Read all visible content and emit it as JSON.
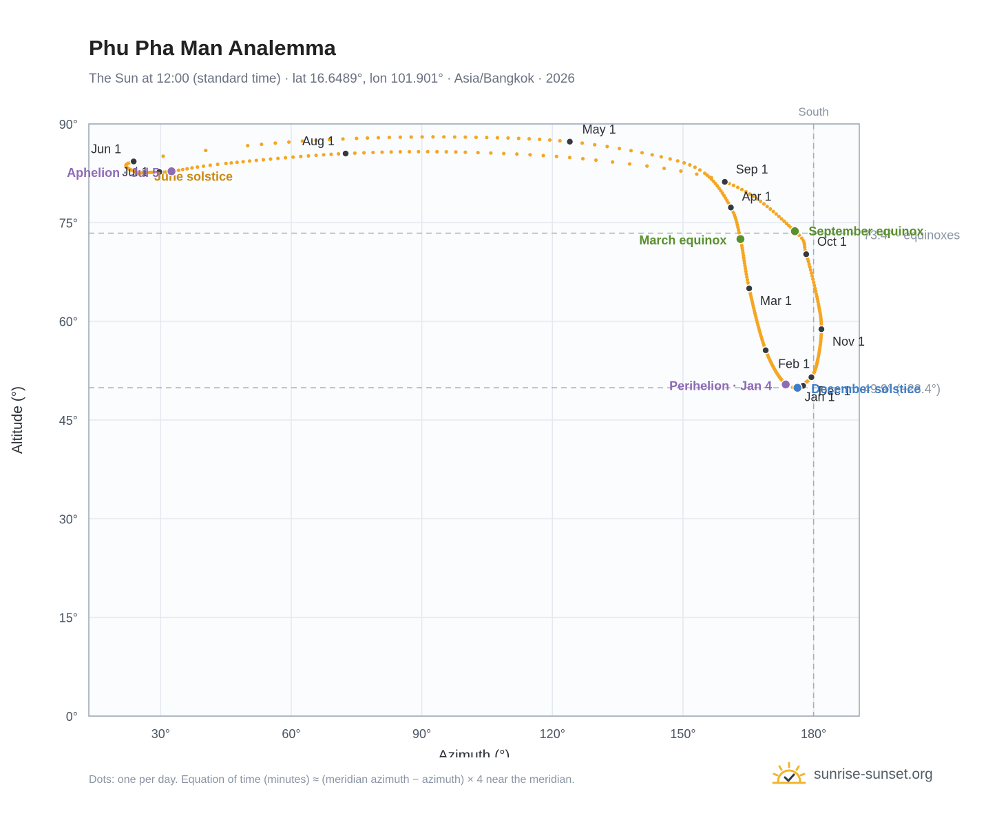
{
  "chart_data": {
    "type": "scatter",
    "title": "Phu Pha Man Analemma",
    "subtitle": "The Sun at 12:00 (standard time) · lat 16.6489°, lon 101.901° · Asia/Bangkok · 2026",
    "xlabel": "Azimuth (°)",
    "ylabel": "Altitude (°)",
    "xlim": [
      13.5,
      190.5
    ],
    "ylim": [
      0,
      90
    ],
    "xticks": [
      30,
      60,
      90,
      120,
      150,
      180
    ],
    "yticks": [
      0,
      15,
      30,
      45,
      60,
      75,
      90
    ],
    "xtick_labels": [
      "30°",
      "60°",
      "90°",
      "120°",
      "150°",
      "180°"
    ],
    "ytick_labels": [
      "0°",
      "15°",
      "30°",
      "45°",
      "60°",
      "75°",
      "90°"
    ],
    "grid": true,
    "colors": {
      "dots": "#f5a623",
      "month": "#343a40",
      "equinox": "#5a8f2e",
      "solstice_june": "#c98a12",
      "solstice_dec": "#3f7ec8",
      "apsis": "#8e6bb5",
      "ref": "#a3adb8",
      "plot_bg": "#fafcfe"
    },
    "reference_lines": {
      "south": {
        "azimuth": 180,
        "label": "South"
      },
      "equinox_altitude": {
        "altitude": 73.4,
        "label": "73.4° · equinoxes"
      },
      "december_altitude": {
        "altitude": 49.9,
        "label": "49.9° (−23.4°)"
      }
    },
    "month_markers": [
      {
        "label": "Jan 1",
        "az": 177.6,
        "alt": 50.2
      },
      {
        "label": "Feb 1",
        "az": 169.0,
        "alt": 55.6
      },
      {
        "label": "Mar 1",
        "az": 165.2,
        "alt": 65.0
      },
      {
        "label": "Apr 1",
        "az": 161.0,
        "alt": 77.3
      },
      {
        "label": "May 1",
        "az": 124.0,
        "alt": 87.3
      },
      {
        "label": "Jun 1",
        "az": 23.8,
        "alt": 84.3
      },
      {
        "label": "Jul 1",
        "az": 29.7,
        "alt": 82.7
      },
      {
        "label": "Aug 1",
        "az": 72.5,
        "alt": 85.5
      },
      {
        "label": "Sep 1",
        "az": 159.6,
        "alt": 81.2
      },
      {
        "label": "Oct 1",
        "az": 178.3,
        "alt": 70.2
      },
      {
        "label": "Nov 1",
        "az": 181.8,
        "alt": 58.8
      },
      {
        "label": "Dec 1",
        "az": 179.5,
        "alt": 51.5
      }
    ],
    "events": [
      {
        "label": "March equinox",
        "az": 163.2,
        "alt": 72.5,
        "kind": "equinox"
      },
      {
        "label": "September equinox",
        "az": 175.7,
        "alt": 73.7,
        "kind": "equinox"
      },
      {
        "label": "June solstice",
        "az": 26.0,
        "alt": 82.6,
        "kind": "solstice_june"
      },
      {
        "label": "December solstice",
        "az": 176.3,
        "alt": 49.9,
        "kind": "solstice_dec"
      },
      {
        "label": "Aphelion · Jul 5",
        "az": 32.5,
        "alt": 82.8,
        "kind": "apsis"
      },
      {
        "label": "Perihelion · Jan 4",
        "az": 173.6,
        "alt": 50.4,
        "kind": "apsis"
      }
    ],
    "path_anchors": [
      {
        "day": 0,
        "az": 177.6,
        "alt": 50.2
      },
      {
        "day": 3,
        "az": 173.6,
        "alt": 50.4
      },
      {
        "day": 31,
        "az": 169.0,
        "alt": 55.6
      },
      {
        "day": 59,
        "az": 165.2,
        "alt": 65.0
      },
      {
        "day": 78,
        "az": 163.2,
        "alt": 72.5
      },
      {
        "day": 90,
        "az": 161.0,
        "alt": 77.3
      },
      {
        "day": 105,
        "az": 155.0,
        "alt": 82.5
      },
      {
        "day": 112,
        "az": 145.0,
        "alt": 85.0
      },
      {
        "day": 120,
        "az": 124.0,
        "alt": 87.3
      },
      {
        "day": 130,
        "az": 100.0,
        "alt": 88.0
      },
      {
        "day": 140,
        "az": 75.0,
        "alt": 87.8
      },
      {
        "day": 148,
        "az": 50.0,
        "alt": 86.7
      },
      {
        "day": 151,
        "az": 23.8,
        "alt": 84.3
      },
      {
        "day": 165,
        "az": 24.5,
        "alt": 82.6
      },
      {
        "day": 172,
        "az": 26.0,
        "alt": 82.6
      },
      {
        "day": 181,
        "az": 29.7,
        "alt": 82.7
      },
      {
        "day": 185,
        "az": 32.5,
        "alt": 82.8
      },
      {
        "day": 195,
        "az": 45.0,
        "alt": 84.0
      },
      {
        "day": 212,
        "az": 72.5,
        "alt": 85.5
      },
      {
        "day": 225,
        "az": 100.0,
        "alt": 85.7
      },
      {
        "day": 235,
        "az": 130.0,
        "alt": 84.5
      },
      {
        "day": 243,
        "az": 159.6,
        "alt": 81.2
      },
      {
        "day": 265,
        "az": 175.7,
        "alt": 73.7
      },
      {
        "day": 273,
        "az": 178.3,
        "alt": 70.2
      },
      {
        "day": 290,
        "az": 181.0,
        "alt": 63.0
      },
      {
        "day": 304,
        "az": 181.8,
        "alt": 58.8
      },
      {
        "day": 318,
        "az": 181.0,
        "alt": 54.3
      },
      {
        "day": 334,
        "az": 179.5,
        "alt": 51.5
      },
      {
        "day": 354,
        "az": 176.3,
        "alt": 49.9
      },
      {
        "day": 365,
        "az": 177.6,
        "alt": 50.2
      }
    ]
  },
  "footnote": "Dots: one per day. Equation of time (minutes) ≈ (meridian azimuth − azimuth) × 4 near the meridian.",
  "brand": {
    "name": "sunrise-sunset.org",
    "icon": "sun-check-icon"
  }
}
